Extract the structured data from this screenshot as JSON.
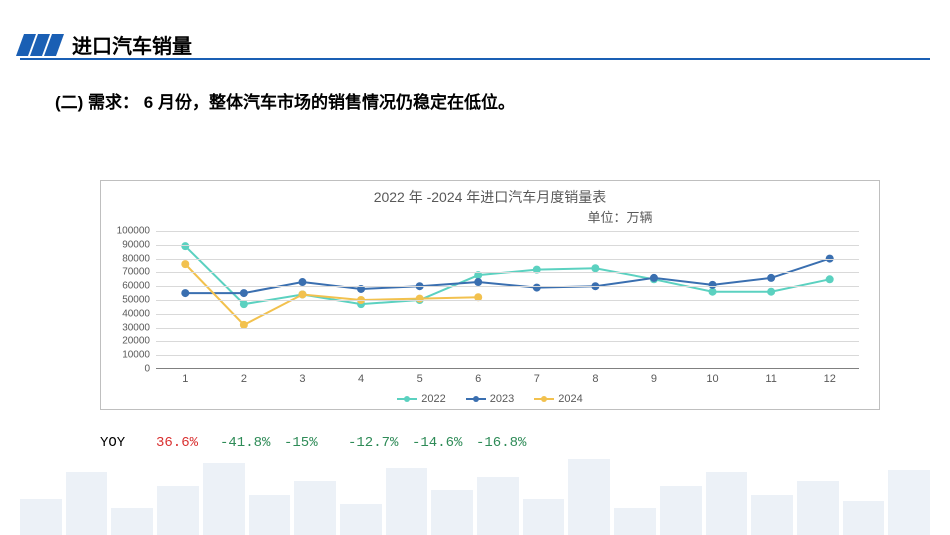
{
  "header": {
    "title": "进口汽车销量"
  },
  "subtitle": "(二) 需求： 6 月份，整体汽车市场的销售情况仍稳定在低位。",
  "chart": {
    "type": "line",
    "title": "2022 年 -2024 年进口汽车月度销量表",
    "unit_label": "单位：万辆",
    "x_categories": [
      "1",
      "2",
      "3",
      "4",
      "5",
      "6",
      "7",
      "8",
      "9",
      "10",
      "11",
      "12"
    ],
    "y_ticks": [
      0,
      10000,
      20000,
      30000,
      40000,
      50000,
      60000,
      70000,
      80000,
      90000,
      100000
    ],
    "ylim": [
      0,
      100000
    ],
    "grid_color": "#d9d9d9",
    "axis_color": "#808080",
    "background_color": "#ffffff",
    "border_color": "#bfbfbf",
    "tick_font_color": "#595959",
    "tick_font_size": 10,
    "line_width": 2,
    "marker_size": 4,
    "series": [
      {
        "name": "2022",
        "color": "#5bd1c0",
        "values": [
          89000,
          47000,
          54000,
          47000,
          50000,
          68000,
          72000,
          73000,
          65000,
          56000,
          56000,
          65000
        ]
      },
      {
        "name": "2023",
        "color": "#3a6fb0",
        "values": [
          55000,
          55000,
          63000,
          58000,
          60000,
          63000,
          59000,
          60000,
          66000,
          61000,
          66000,
          80000
        ]
      },
      {
        "name": "2024",
        "color": "#f2c14e",
        "values": [
          76000,
          32000,
          54000,
          50000,
          51000,
          52000
        ]
      }
    ],
    "legend": {
      "position": "bottom",
      "items": [
        "2022",
        "2023",
        "2024"
      ]
    }
  },
  "yoy": {
    "label": "YOY",
    "positive_color": "#d93030",
    "negative_color": "#2e8b57",
    "values": [
      {
        "text": "36.6%",
        "positive": true
      },
      {
        "text": "-41.8%",
        "positive": false
      },
      {
        "text": "-15%",
        "positive": false
      },
      {
        "text": "-12.7%",
        "positive": false
      },
      {
        "text": "-14.6%",
        "positive": false
      },
      {
        "text": "-16.8%",
        "positive": false
      }
    ]
  }
}
